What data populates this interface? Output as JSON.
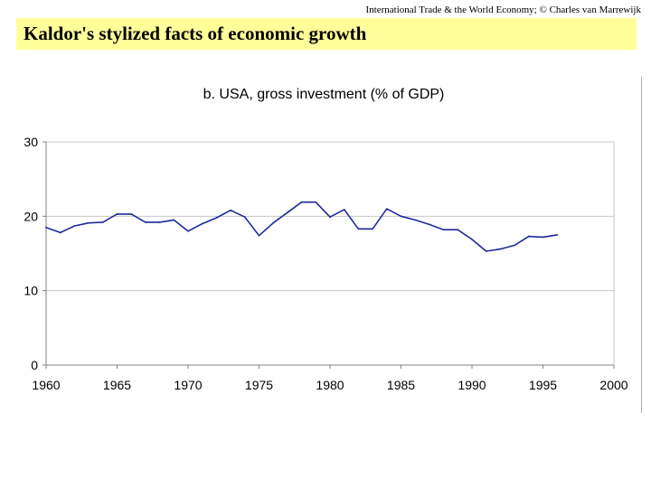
{
  "header": {
    "credit": "International Trade & the World Economy;  © Charles van Marrewijk",
    "slide_title": "Kaldor's stylized facts of economic growth"
  },
  "chart_data": {
    "type": "line",
    "title": "b. USA, gross investment (% of GDP)",
    "xlabel": "",
    "ylabel": "",
    "xlim": [
      1960,
      2000
    ],
    "ylim": [
      0,
      30
    ],
    "x_ticks": [
      1960,
      1965,
      1970,
      1975,
      1980,
      1985,
      1990,
      1995,
      2000
    ],
    "y_ticks": [
      0,
      10,
      20,
      30
    ],
    "grid": "horizontal",
    "colors": {
      "line": "#1e2a9c",
      "axis": "#808080",
      "grid": "#c8c8c8"
    },
    "series": [
      {
        "name": "USA gross investment",
        "x": [
          1960,
          1961,
          1962,
          1963,
          1964,
          1965,
          1966,
          1967,
          1968,
          1969,
          1970,
          1971,
          1972,
          1973,
          1974,
          1975,
          1976,
          1977,
          1978,
          1979,
          1980,
          1981,
          1982,
          1983,
          1984,
          1985,
          1986,
          1987,
          1988,
          1989,
          1990,
          1991,
          1992,
          1993,
          1994,
          1995,
          1996
        ],
        "values": [
          18.5,
          17.8,
          18.7,
          19.1,
          19.2,
          20.3,
          20.3,
          19.2,
          19.2,
          19.5,
          18.0,
          19.0,
          19.8,
          20.8,
          19.9,
          17.4,
          19.1,
          20.5,
          21.9,
          21.9,
          19.9,
          20.9,
          18.3,
          18.3,
          21.0,
          20.0,
          19.5,
          18.9,
          18.2,
          18.2,
          16.9,
          15.3,
          15.6,
          16.1,
          17.3,
          17.2,
          17.5
        ]
      }
    ]
  }
}
